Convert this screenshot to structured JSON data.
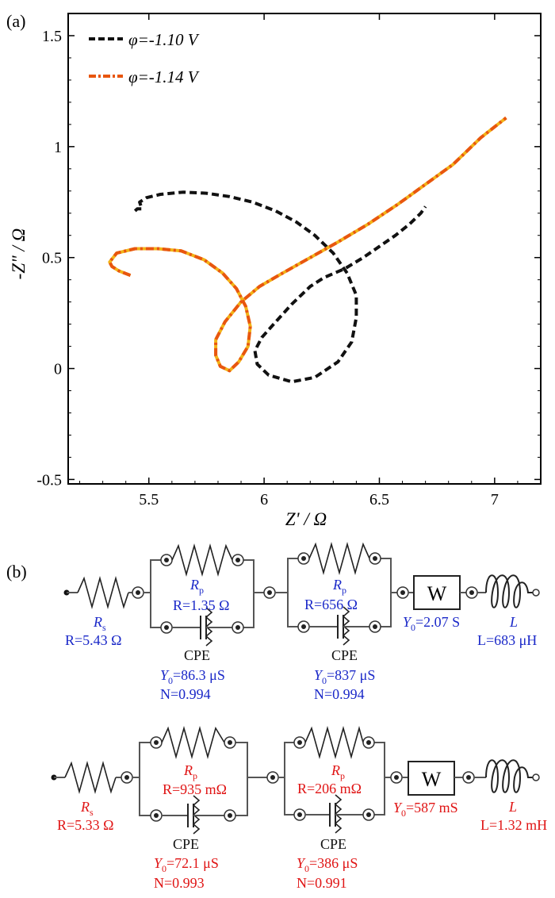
{
  "panel_a_label": "(a)",
  "panel_b_label": "(b)",
  "chart_data": {
    "type": "line",
    "xlabel": "Z' / Ω",
    "ylabel": "-Z\" / Ω",
    "xlim": [
      5.15,
      7.2
    ],
    "ylim": [
      -0.52,
      1.6
    ],
    "xticks": [
      5.5,
      6,
      6.5,
      7
    ],
    "yticks": [
      -0.5,
      0,
      0.5,
      1,
      1.5
    ],
    "xtick_labels": [
      "5.5",
      "6",
      "6.5",
      "7"
    ],
    "ytick_labels": [
      "-0.5",
      "0",
      "0.5",
      "1",
      "1.5"
    ],
    "grid": false,
    "legend_position": "top-left",
    "series": [
      {
        "name": "φ=-1.10 V",
        "style": "dashed",
        "color": "#111111",
        "points": [
          [
            5.44,
            0.71
          ],
          [
            5.45,
            0.72
          ],
          [
            5.47,
            0.72
          ],
          [
            5.46,
            0.75
          ],
          [
            5.49,
            0.77
          ],
          [
            5.55,
            0.785
          ],
          [
            5.65,
            0.795
          ],
          [
            5.75,
            0.79
          ],
          [
            5.85,
            0.775
          ],
          [
            5.95,
            0.75
          ],
          [
            6.05,
            0.71
          ],
          [
            6.14,
            0.66
          ],
          [
            6.22,
            0.6
          ],
          [
            6.3,
            0.52
          ],
          [
            6.36,
            0.43
          ],
          [
            6.4,
            0.33
          ],
          [
            6.4,
            0.23
          ],
          [
            6.38,
            0.12
          ],
          [
            6.32,
            0.03
          ],
          [
            6.22,
            -0.04
          ],
          [
            6.12,
            -0.06
          ],
          [
            6.02,
            -0.03
          ],
          [
            5.97,
            0.02
          ],
          [
            5.96,
            0.08
          ],
          [
            5.99,
            0.14
          ],
          [
            6.05,
            0.21
          ],
          [
            6.12,
            0.29
          ],
          [
            6.2,
            0.37
          ],
          [
            6.26,
            0.41
          ],
          [
            6.35,
            0.45
          ],
          [
            6.43,
            0.5
          ],
          [
            6.5,
            0.55
          ],
          [
            6.57,
            0.6
          ],
          [
            6.63,
            0.65
          ],
          [
            6.68,
            0.7
          ],
          [
            6.7,
            0.73
          ]
        ]
      },
      {
        "name": "φ=-1.14 V",
        "style": "dash-dot",
        "color": "#e8560f",
        "highlight_color": "#f2b418",
        "points": [
          [
            5.42,
            0.42
          ],
          [
            5.37,
            0.44
          ],
          [
            5.34,
            0.46
          ],
          [
            5.33,
            0.48
          ],
          [
            5.36,
            0.52
          ],
          [
            5.44,
            0.54
          ],
          [
            5.54,
            0.54
          ],
          [
            5.64,
            0.53
          ],
          [
            5.74,
            0.49
          ],
          [
            5.82,
            0.43
          ],
          [
            5.88,
            0.36
          ],
          [
            5.92,
            0.28
          ],
          [
            5.94,
            0.19
          ],
          [
            5.93,
            0.1
          ],
          [
            5.89,
            0.03
          ],
          [
            5.85,
            -0.01
          ],
          [
            5.81,
            0.01
          ],
          [
            5.79,
            0.06
          ],
          [
            5.79,
            0.13
          ],
          [
            5.83,
            0.21
          ],
          [
            5.9,
            0.3
          ],
          [
            5.98,
            0.37
          ],
          [
            6.08,
            0.43
          ],
          [
            6.2,
            0.5
          ],
          [
            6.32,
            0.57
          ],
          [
            6.45,
            0.65
          ],
          [
            6.58,
            0.74
          ],
          [
            6.7,
            0.83
          ],
          [
            6.82,
            0.92
          ],
          [
            6.94,
            1.04
          ],
          [
            7.05,
            1.13
          ]
        ]
      }
    ]
  },
  "circuits": [
    {
      "color": "#1a28c8",
      "rs_label": "R",
      "rs_sub": "s",
      "rs_value": "R=5.43 Ω",
      "rp1_label": "R",
      "rp1_sub": "p",
      "rp1_value": "R=1.35 Ω",
      "cpe1_label": "CPE",
      "cpe1_y0": "Y",
      "cpe1_y0_sub": "0",
      "cpe1_y0_value": "=86.3 μS",
      "cpe1_n": "N=0.994",
      "rp2_label": "R",
      "rp2_sub": "p",
      "rp2_value": "R=656 Ω",
      "cpe2_label": "CPE",
      "cpe2_y0": "Y",
      "cpe2_y0_sub": "0",
      "cpe2_y0_value": "=837 μS",
      "cpe2_n": "N=0.994",
      "w_label": "W",
      "w_y0": "Y",
      "w_y0_sub": "0",
      "w_y0_value": "=2.07 S",
      "l_label": "L",
      "l_value": "L=683 μH"
    },
    {
      "color": "#e01414",
      "rs_label": "R",
      "rs_sub": "s",
      "rs_value": "R=5.33 Ω",
      "rp1_label": "R",
      "rp1_sub": "p",
      "rp1_value": "R=935 mΩ",
      "cpe1_label": "CPE",
      "cpe1_y0": "Y",
      "cpe1_y0_sub": "0",
      "cpe1_y0_value": "=72.1 μS",
      "cpe1_n": "N=0.993",
      "rp2_label": "R",
      "rp2_sub": "p",
      "rp2_value": "R=206 mΩ",
      "cpe2_label": "CPE",
      "cpe2_y0": "Y",
      "cpe2_y0_sub": "0",
      "cpe2_y0_value": "=386 μS",
      "cpe2_n": "N=0.991",
      "w_label": "W",
      "w_y0": "Y",
      "w_y0_sub": "0",
      "w_y0_value": "=587 mS",
      "l_label": "L",
      "l_value": "L=1.32 mH"
    }
  ]
}
